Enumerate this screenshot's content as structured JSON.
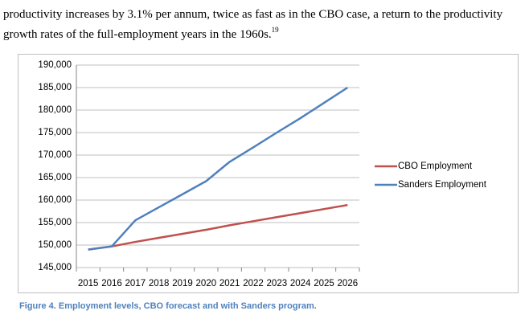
{
  "paragraph": [
    "productivity increases by 3.1% per annum, twice as fast as in the CBO case, a return to the productivity",
    "growth rates of the full-employment years in the 1960s."
  ],
  "footnote": "19",
  "caption": "Figure 4.  Employment levels, CBO forecast and with Sanders program.",
  "chart_data": {
    "type": "line",
    "categories": [
      "2015",
      "2016",
      "2017",
      "2018",
      "2019",
      "2020",
      "2021",
      "2022",
      "2023",
      "2024",
      "2025",
      "2026"
    ],
    "series": [
      {
        "name": "CBO Employment",
        "color": "#c0504d",
        "values": [
          149000,
          149700,
          150700,
          151600,
          152500,
          153400,
          154400,
          155300,
          156200,
          157100,
          158000,
          158900
        ]
      },
      {
        "name": "Sanders Employment",
        "color": "#4f81bd",
        "values": [
          149000,
          149700,
          155500,
          158400,
          161300,
          164200,
          168500,
          171700,
          175000,
          178200,
          181600,
          185000
        ]
      }
    ],
    "ylim": [
      145000,
      190000
    ],
    "yticks": [
      {
        "value": 145000,
        "label": "145,000"
      },
      {
        "value": 150000,
        "label": "150,000"
      },
      {
        "value": 155000,
        "label": "155,000"
      },
      {
        "value": 160000,
        "label": "160,000"
      },
      {
        "value": 165000,
        "label": "165,000"
      },
      {
        "value": 170000,
        "label": "170,000"
      },
      {
        "value": 175000,
        "label": "175,000"
      },
      {
        "value": 180000,
        "label": "180,000"
      },
      {
        "value": 185000,
        "label": "185,000"
      },
      {
        "value": 190000,
        "label": "190,000"
      }
    ],
    "grid": true,
    "legend": "right"
  }
}
